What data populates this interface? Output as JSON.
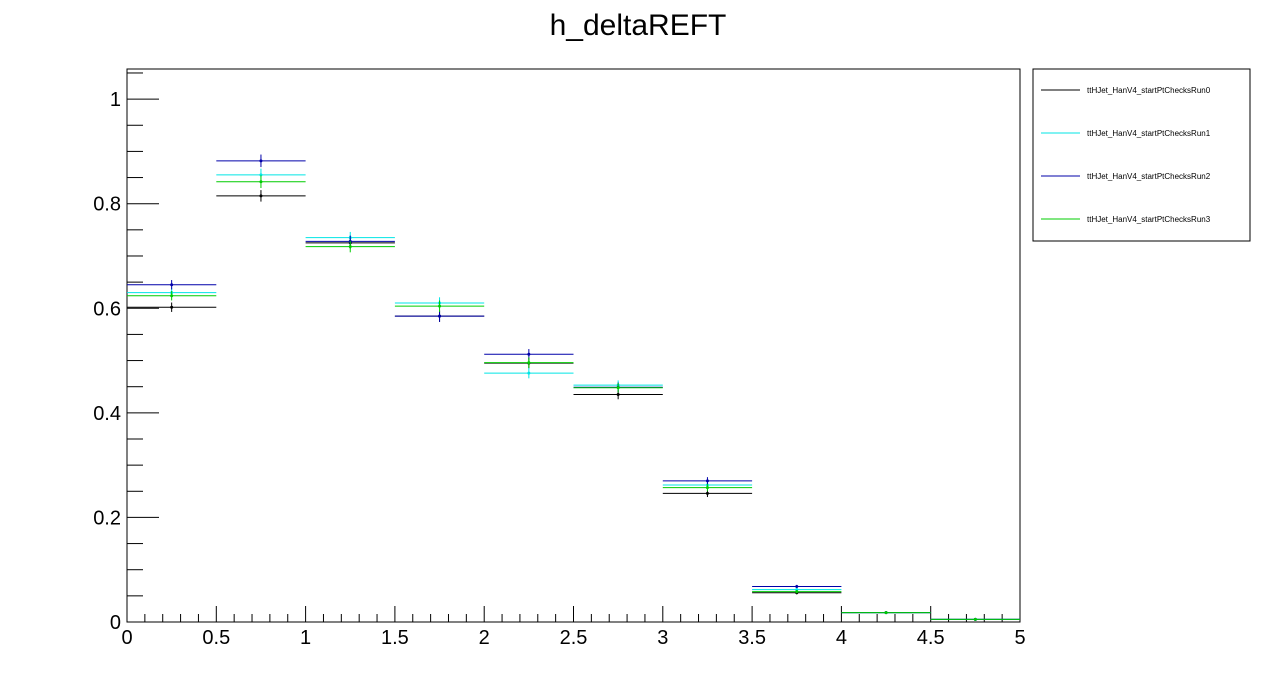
{
  "chart_data": {
    "type": "scatter",
    "title": "h_deltaREFT",
    "xlabel": "",
    "ylabel": "",
    "xlim": [
      0,
      5
    ],
    "ylim": [
      0,
      1.0576
    ],
    "grid": false,
    "legend_position": "right",
    "x_ticks": [
      {
        "v": 0,
        "label": "0"
      },
      {
        "v": 0.5,
        "label": "0.5"
      },
      {
        "v": 1,
        "label": "1"
      },
      {
        "v": 1.5,
        "label": "1.5"
      },
      {
        "v": 2,
        "label": "2"
      },
      {
        "v": 2.5,
        "label": "2.5"
      },
      {
        "v": 3,
        "label": "3"
      },
      {
        "v": 3.5,
        "label": "3.5"
      },
      {
        "v": 4,
        "label": "4"
      },
      {
        "v": 4.5,
        "label": "4.5"
      },
      {
        "v": 5,
        "label": "5"
      }
    ],
    "y_ticks": [
      {
        "v": 0,
        "label": "0"
      },
      {
        "v": 0.2,
        "label": "0.2"
      },
      {
        "v": 0.4,
        "label": "0.4"
      },
      {
        "v": 0.6,
        "label": "0.6"
      },
      {
        "v": 0.8,
        "label": "0.8"
      },
      {
        "v": 1,
        "label": "1"
      }
    ],
    "bin_edges": [
      0,
      0.5,
      1,
      1.5,
      2,
      2.5,
      3,
      3.5,
      4,
      4.5,
      5
    ],
    "series": [
      {
        "name": "ttHJet_HanV4_startPtChecksRun0",
        "color": "#000000",
        "values": [
          0.602,
          0.815,
          0.725,
          0.585,
          0.495,
          0.435,
          0.246,
          0.056,
          0.018,
          0.005
        ],
        "errors": [
          0.009,
          0.011,
          0.011,
          0.011,
          0.01,
          0.009,
          0.007,
          0.003,
          0.002,
          0.001
        ]
      },
      {
        "name": "ttHJet_HanV4_startPtChecksRun1",
        "color": "#00e5e5",
        "values": [
          0.63,
          0.855,
          0.735,
          0.61,
          0.476,
          0.453,
          0.262,
          0.062,
          0.018,
          0.005
        ],
        "errors": [
          0.009,
          0.012,
          0.011,
          0.011,
          0.01,
          0.009,
          0.007,
          0.003,
          0.002,
          0.001
        ]
      },
      {
        "name": "ttHJet_HanV4_startPtChecksRun2",
        "color": "#0000aa",
        "values": [
          0.645,
          0.882,
          0.728,
          0.585,
          0.512,
          0.449,
          0.27,
          0.068,
          0.018,
          0.005
        ],
        "errors": [
          0.009,
          0.012,
          0.011,
          0.011,
          0.01,
          0.009,
          0.007,
          0.003,
          0.002,
          0.001
        ]
      },
      {
        "name": "ttHJet_HanV4_startPtChecksRun3",
        "color": "#00cc00",
        "values": [
          0.624,
          0.842,
          0.718,
          0.604,
          0.496,
          0.448,
          0.257,
          0.058,
          0.018,
          0.005
        ],
        "errors": [
          0.009,
          0.012,
          0.011,
          0.011,
          0.01,
          0.009,
          0.007,
          0.003,
          0.002,
          0.001
        ]
      }
    ]
  }
}
